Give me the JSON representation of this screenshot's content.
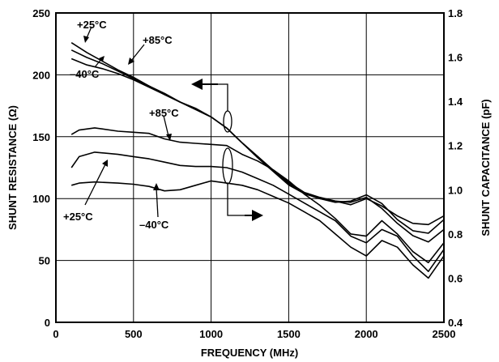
{
  "chart_data": {
    "type": "line",
    "title": "",
    "xlabel": "FREQUENCY (MHz)",
    "ylabel_left": "SHUNT RESISTANCE (Ω)",
    "ylabel_right": "SHUNT CAPACITANCE (pF)",
    "xlim": [
      0,
      2500
    ],
    "ylim_left": [
      0,
      250
    ],
    "ylim_right": [
      0.4,
      1.8
    ],
    "grid": true,
    "x_ticks": [
      0,
      500,
      1000,
      1500,
      2000,
      2500
    ],
    "y_left_ticks": [
      0,
      50,
      100,
      150,
      200,
      250
    ],
    "y_right_ticks": [
      0.4,
      0.6,
      0.8,
      1.0,
      1.2,
      1.4,
      1.6,
      1.8
    ],
    "x_tick_labels": [
      "0",
      "500",
      "1000",
      "1500",
      "2000",
      "2500"
    ],
    "y_left_tick_labels": [
      "0",
      "50",
      "100",
      "150",
      "200",
      "250"
    ],
    "y_right_tick_labels": [
      "0.4",
      "0.6",
      "0.8",
      "1.0",
      "1.2",
      "1.4",
      "1.6",
      "1.8"
    ],
    "series": [
      {
        "axis": "left",
        "x": [
          100,
          200,
          300,
          400,
          500,
          600,
          700,
          800,
          900,
          1000,
          1100,
          1200,
          1300,
          1400,
          1500,
          1600,
          1700,
          1800,
          1900,
          2000,
          2100,
          2200,
          2300,
          2400,
          2500
        ],
        "values": [
          226,
          218,
          211,
          204,
          198,
          191,
          184,
          178,
          172,
          166,
          157,
          145,
          133,
          122,
          111,
          104,
          100,
          98,
          95,
          100,
          94,
          86,
          80,
          79,
          86
        ]
      },
      {
        "axis": "left",
        "x": [
          100,
          200,
          300,
          400,
          500,
          600,
          700,
          800,
          900,
          1000,
          1100,
          1200,
          1300,
          1400,
          1500,
          1600,
          1700,
          1800,
          1900,
          2000,
          2100,
          2200,
          2300,
          2400,
          2500
        ],
        "values": [
          220,
          214,
          209,
          203,
          197,
          191,
          185,
          178,
          172,
          166,
          157,
          145,
          134,
          123,
          112,
          104,
          100,
          97,
          98,
          103,
          96,
          83,
          74,
          72,
          83
        ]
      },
      {
        "axis": "left",
        "x": [
          100,
          200,
          300,
          400,
          500,
          600,
          700,
          800,
          900,
          1000,
          1100,
          1200,
          1300,
          1400,
          1500,
          1600,
          1700,
          1800,
          1900,
          2000,
          2100,
          2200,
          2300,
          2400,
          2500
        ],
        "values": [
          213,
          208,
          205,
          201,
          196,
          190,
          184,
          178,
          173,
          166,
          157,
          145,
          134,
          123,
          113,
          105,
          101,
          98,
          97,
          101,
          92,
          80,
          70,
          65,
          75
        ]
      },
      {
        "axis": "right",
        "x": [
          100,
          150,
          250,
          400,
          500,
          600,
          700,
          800,
          900,
          1000,
          1100,
          1200,
          1300,
          1400,
          1500,
          1600,
          1700,
          1800,
          1900,
          2000,
          2100,
          2200,
          2300,
          2400,
          2500
        ],
        "values": [
          1.25,
          1.27,
          1.28,
          1.265,
          1.26,
          1.255,
          1.23,
          1.215,
          1.21,
          1.205,
          1.2,
          1.16,
          1.13,
          1.09,
          1.04,
          0.98,
          0.93,
          0.87,
          0.8,
          0.79,
          0.86,
          0.8,
          0.72,
          0.67,
          0.76
        ]
      },
      {
        "axis": "right",
        "x": [
          100,
          150,
          250,
          400,
          500,
          600,
          700,
          800,
          900,
          1000,
          1100,
          1200,
          1300,
          1400,
          1500,
          1600,
          1700,
          1800,
          1900,
          2000,
          2100,
          2200,
          2300,
          2400,
          2500
        ],
        "values": [
          1.1,
          1.15,
          1.17,
          1.16,
          1.15,
          1.14,
          1.125,
          1.11,
          1.105,
          1.105,
          1.1,
          1.08,
          1.05,
          1.02,
          0.98,
          0.94,
          0.9,
          0.86,
          0.79,
          0.76,
          0.82,
          0.79,
          0.7,
          0.63,
          0.73
        ]
      },
      {
        "axis": "right",
        "x": [
          100,
          150,
          250,
          400,
          500,
          600,
          700,
          800,
          900,
          1000,
          1100,
          1200,
          1300,
          1400,
          1500,
          1600,
          1700,
          1800,
          1900,
          2000,
          2100,
          2200,
          2300,
          2400,
          2500
        ],
        "values": [
          1.02,
          1.03,
          1.035,
          1.03,
          1.025,
          1.015,
          0.995,
          1.0,
          1.02,
          1.04,
          1.03,
          1.02,
          1.0,
          0.97,
          0.94,
          0.9,
          0.86,
          0.8,
          0.74,
          0.7,
          0.77,
          0.74,
          0.66,
          0.6,
          0.7
        ]
      }
    ],
    "annotations": [
      {
        "text": "+25°C"
      },
      {
        "text": "+85°C"
      },
      {
        "text": "–40°C"
      },
      {
        "text": "+85°C"
      },
      {
        "text": "+25°C"
      },
      {
        "text": "–40°C"
      }
    ]
  }
}
